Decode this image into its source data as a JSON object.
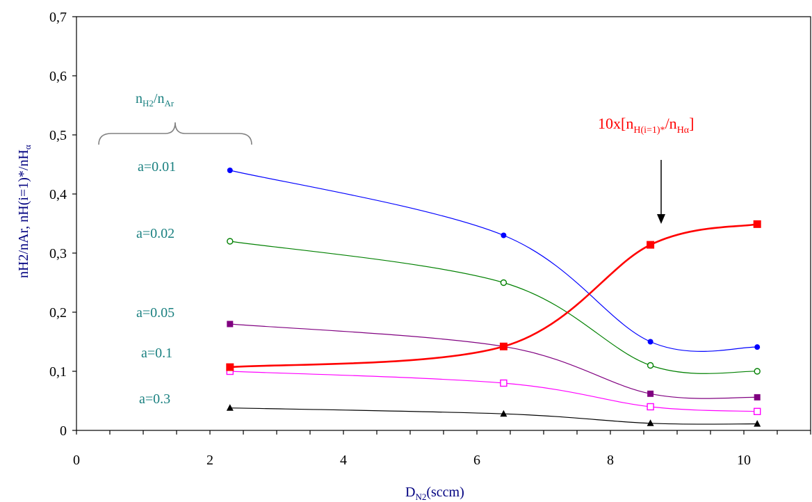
{
  "chart_data": {
    "type": "line",
    "x": [
      2.3,
      6.4,
      8.6,
      10.2
    ],
    "xlim": [
      0,
      11
    ],
    "ylim": [
      0,
      0.7
    ],
    "xticks": [
      "0",
      "2",
      "4",
      "6",
      "8",
      "10"
    ],
    "yticks": [
      "0",
      "0,1",
      "0,2",
      "0,3",
      "0,4",
      "0,5",
      "0,6",
      "0,7"
    ],
    "xlabel": {
      "main": "D",
      "sub": "N2",
      "tail": "(sccm)"
    },
    "ylabel": {
      "p1": "nH2/nAr, nH(i=1)*/nH",
      "p2": "α"
    },
    "group_label": {
      "n": "n",
      "s1": "H2",
      "mid": "/n",
      "s2": "Ar"
    },
    "series": [
      {
        "name": "a=0.01",
        "values": [
          0.44,
          0.33,
          0.15,
          0.141
        ],
        "color": "#0000ff",
        "marker": "circle-filled"
      },
      {
        "name": "a=0.02",
        "values": [
          0.32,
          0.25,
          0.11,
          0.1
        ],
        "color": "#008000",
        "marker": "circle-open"
      },
      {
        "name": "a=0.05",
        "values": [
          0.18,
          0.142,
          0.062,
          0.056
        ],
        "color": "#800080",
        "marker": "square-filled"
      },
      {
        "name": "a=0.1",
        "values": [
          0.1,
          0.08,
          0.04,
          0.032
        ],
        "color": "#ff00ff",
        "marker": "square-open"
      },
      {
        "name": "a=0.3",
        "values": [
          0.038,
          0.028,
          0.012,
          0.011
        ],
        "color": "#000000",
        "marker": "triangle"
      },
      {
        "name": "10x[nH(i=1)*/nHα]",
        "values": [
          0.107,
          0.142,
          0.314,
          0.349
        ],
        "color": "#ff0000",
        "marker": "square-filled-large"
      }
    ],
    "red_label": {
      "pre": "10x[n",
      "s1": "H(i=1)*",
      "mid": "/n",
      "s2": "Hα",
      "post": "]"
    }
  }
}
